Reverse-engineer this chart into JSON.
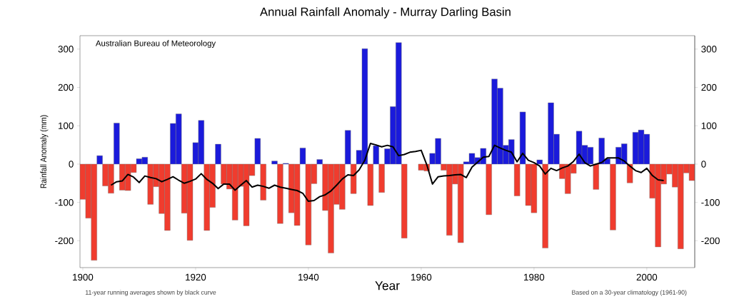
{
  "chart_data": {
    "type": "bar",
    "title": "Annual Rainfall Anomaly - Murray Darling Basin",
    "xlabel": "Year",
    "ylabel": "Rainfall Anomaly (mm)",
    "annotations": [
      "Australian Bureau of Meteorology",
      "11-year running averages shown by black curve",
      "Based on a 30-year climatology (1961-90)"
    ],
    "x": [
      1900,
      1901,
      1902,
      1903,
      1904,
      1905,
      1906,
      1907,
      1908,
      1909,
      1910,
      1911,
      1912,
      1913,
      1914,
      1915,
      1916,
      1917,
      1918,
      1919,
      1920,
      1921,
      1922,
      1923,
      1924,
      1925,
      1926,
      1927,
      1928,
      1929,
      1930,
      1931,
      1932,
      1933,
      1934,
      1935,
      1936,
      1937,
      1938,
      1939,
      1940,
      1941,
      1942,
      1943,
      1944,
      1945,
      1946,
      1947,
      1948,
      1949,
      1950,
      1951,
      1952,
      1953,
      1954,
      1955,
      1956,
      1957,
      1958,
      1959,
      1960,
      1961,
      1962,
      1963,
      1964,
      1965,
      1966,
      1967,
      1968,
      1969,
      1970,
      1971,
      1972,
      1973,
      1974,
      1975,
      1976,
      1977,
      1978,
      1979,
      1980,
      1981,
      1982,
      1983,
      1984,
      1985,
      1986,
      1987,
      1988,
      1989,
      1990,
      1991,
      1992,
      1993,
      1994,
      1995,
      1996,
      1997,
      1998,
      1999,
      2000,
      2001,
      2002,
      2003,
      2004,
      2005,
      2006,
      2007,
      2008
    ],
    "series": [
      {
        "values": [
          -92,
          -141,
          -251,
          22,
          -57,
          -76,
          107,
          -68,
          -69,
          -22,
          14,
          18,
          -105,
          -59,
          -129,
          -173,
          106,
          131,
          -128,
          -199,
          56,
          114,
          -173,
          -113,
          52,
          -52,
          -65,
          -146,
          -58,
          -161,
          -30,
          67,
          -94,
          0,
          8,
          -155,
          2,
          -127,
          -160,
          42,
          -211,
          -51,
          12,
          -121,
          -232,
          -105,
          -118,
          88,
          -77,
          36,
          301,
          -108,
          48,
          -74,
          40,
          150,
          317,
          -193,
          0,
          0,
          -16,
          -18,
          28,
          67,
          -16,
          -186,
          -52,
          -205,
          6,
          28,
          17,
          41,
          -132,
          222,
          198,
          49,
          64,
          -83,
          136,
          -108,
          -127,
          11,
          -219,
          160,
          78,
          -38,
          -77,
          -24,
          86,
          49,
          44,
          -66,
          68,
          14,
          -172,
          44,
          53,
          -49,
          83,
          89,
          78,
          -89,
          -216,
          -52,
          -26,
          -60,
          -221,
          -23,
          -43
        ],
        "colors": [
          "#f03c2e",
          "#f03c2e",
          "#f03c2e",
          "#1a1adb",
          "#f03c2e",
          "#f03c2e",
          "#1a1adb",
          "#f03c2e",
          "#f03c2e",
          "#f03c2e",
          "#1a1adb",
          "#1a1adb",
          "#f03c2e",
          "#f03c2e",
          "#f03c2e",
          "#f03c2e",
          "#1a1adb",
          "#1a1adb",
          "#f03c2e",
          "#f03c2e",
          "#1a1adb",
          "#1a1adb",
          "#f03c2e",
          "#f03c2e",
          "#1a1adb",
          "#f03c2e",
          "#f03c2e",
          "#f03c2e",
          "#f03c2e",
          "#f03c2e",
          "#f03c2e",
          "#1a1adb",
          "#f03c2e",
          "#1a1adb",
          "#1a1adb",
          "#f03c2e",
          "#1a1adb",
          "#f03c2e",
          "#f03c2e",
          "#1a1adb",
          "#f03c2e",
          "#f03c2e",
          "#1a1adb",
          "#f03c2e",
          "#f03c2e",
          "#f03c2e",
          "#f03c2e",
          "#1a1adb",
          "#f03c2e",
          "#1a1adb",
          "#1a1adb",
          "#f03c2e",
          "#1a1adb",
          "#f03c2e",
          "#1a1adb",
          "#1a1adb",
          "#1a1adb",
          "#f03c2e",
          "#1a1adb",
          "#1a1adb",
          "#f03c2e",
          "#f03c2e",
          "#1a1adb",
          "#1a1adb",
          "#f03c2e",
          "#f03c2e",
          "#f03c2e",
          "#f03c2e",
          "#1a1adb",
          "#1a1adb",
          "#1a1adb",
          "#1a1adb",
          "#f03c2e",
          "#1a1adb",
          "#1a1adb",
          "#1a1adb",
          "#1a1adb",
          "#f03c2e",
          "#1a1adb",
          "#f03c2e",
          "#f03c2e",
          "#1a1adb",
          "#f03c2e",
          "#1a1adb",
          "#1a1adb",
          "#f03c2e",
          "#f03c2e",
          "#f03c2e",
          "#1a1adb",
          "#1a1adb",
          "#1a1adb",
          "#f03c2e",
          "#1a1adb",
          "#1a1adb",
          "#f03c2e",
          "#1a1adb",
          "#1a1adb",
          "#f03c2e",
          "#1a1adb",
          "#1a1adb",
          "#1a1adb",
          "#f03c2e",
          "#f03c2e",
          "#f03c2e",
          "#f03c2e",
          "#f03c2e",
          "#f03c2e",
          "#f03c2e",
          "#f03c2e"
        ]
      },
      {
        "type": "line",
        "color": "#000000",
        "x": [
          1905,
          1906,
          1907,
          1908,
          1909,
          1910,
          1911,
          1912,
          1913,
          1914,
          1915,
          1916,
          1917,
          1918,
          1919,
          1920,
          1921,
          1922,
          1923,
          1924,
          1925,
          1926,
          1927,
          1928,
          1929,
          1930,
          1931,
          1932,
          1933,
          1934,
          1935,
          1936,
          1937,
          1938,
          1939,
          1940,
          1941,
          1942,
          1943,
          1944,
          1945,
          1946,
          1947,
          1948,
          1949,
          1950,
          1951,
          1952,
          1953,
          1954,
          1955,
          1956,
          1957,
          1958,
          1959,
          1960,
          1961,
          1962,
          1963,
          1964,
          1965,
          1966,
          1967,
          1968,
          1969,
          1970,
          1971,
          1972,
          1973,
          1974,
          1975,
          1976,
          1977,
          1978,
          1979,
          1980,
          1981,
          1982,
          1983,
          1984,
          1985,
          1986,
          1987,
          1988,
          1989,
          1990,
          1991,
          1992,
          1993,
          1994,
          1995,
          1996,
          1997,
          1998,
          1999,
          2000,
          2001,
          2002,
          2003
        ],
        "values": [
          -55,
          -46,
          -44,
          -27,
          -34,
          -48,
          -31,
          -35,
          -38,
          -46,
          -40,
          -33,
          -42,
          -50,
          -45,
          -39,
          -25,
          -40,
          -50,
          -64,
          -52,
          -52,
          -68,
          -55,
          -43,
          -60,
          -55,
          -58,
          -63,
          -55,
          -60,
          -63,
          -66,
          -69,
          -76,
          -97,
          -95,
          -85,
          -80,
          -70,
          -55,
          -39,
          -28,
          -30,
          -15,
          10,
          54,
          50,
          45,
          49,
          45,
          22,
          25,
          31,
          33,
          36,
          -2,
          -52,
          -33,
          -31,
          -30,
          -28,
          -27,
          -35,
          -8,
          5,
          18,
          20,
          49,
          42,
          36,
          31,
          6,
          28,
          10,
          4,
          -5,
          -26,
          -11,
          -17,
          -10,
          -5,
          7,
          26,
          4,
          -5,
          0,
          4,
          16,
          16,
          16,
          8,
          -5,
          -17,
          -22,
          -11,
          -30,
          -41,
          -43
        ]
      }
    ],
    "xlim": [
      1899.5,
      2008.5
    ],
    "xticks": [
      1900,
      1920,
      1940,
      1960,
      1980,
      2000
    ],
    "ylim": [
      -270,
      335
    ],
    "yticks": [
      -200,
      -100,
      0,
      100,
      200,
      300
    ],
    "y2lim": [
      -270,
      335
    ],
    "y2ticks": [
      -200,
      -100,
      0,
      100,
      200,
      300
    ]
  }
}
